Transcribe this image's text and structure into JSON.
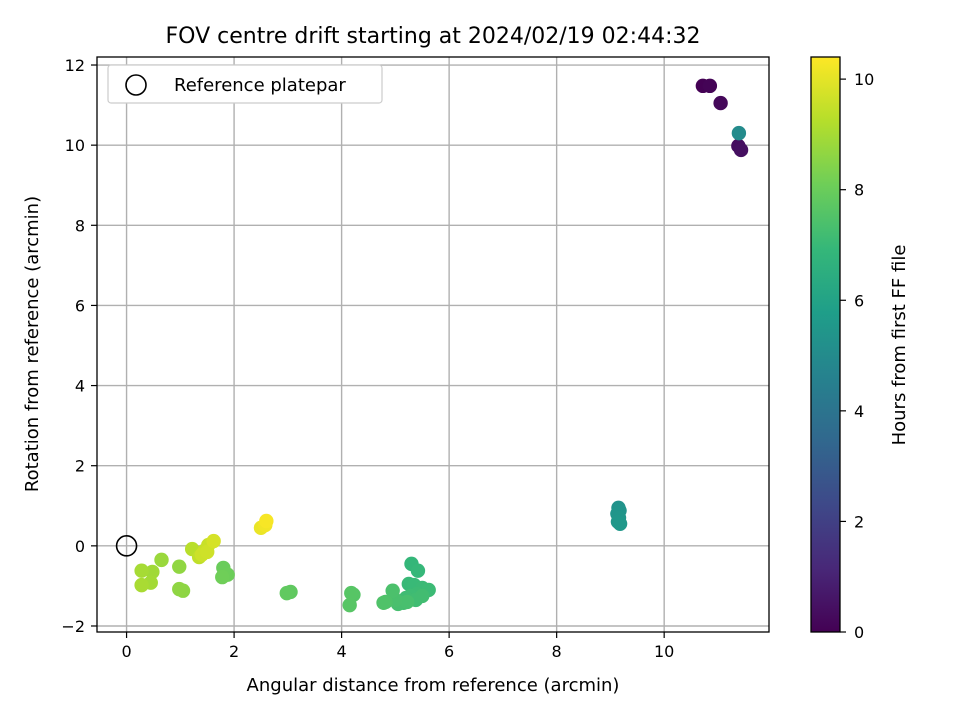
{
  "chart_data": {
    "type": "scatter",
    "title": "FOV centre drift starting at 2024/02/19 02:44:32",
    "xlabel": "Angular distance from reference (arcmin)",
    "ylabel": "Rotation from reference (arcmin)",
    "xlim": [
      -0.55,
      11.95
    ],
    "ylim": [
      -2.15,
      12.2
    ],
    "x_ticks": [
      0,
      2,
      4,
      6,
      8,
      10
    ],
    "y_ticks": [
      -2,
      0,
      2,
      4,
      6,
      8,
      10,
      12
    ],
    "grid": true,
    "legend": {
      "position": "top-left",
      "entries": [
        {
          "label": "Reference platepar",
          "marker": "open-circle"
        }
      ]
    },
    "reference_point": {
      "x": 0,
      "y": 0
    },
    "colorbar": {
      "label": "Hours from first FF file",
      "colormap": "viridis",
      "range": [
        0,
        10.4
      ],
      "ticks": [
        0,
        2,
        4,
        6,
        8,
        10
      ]
    },
    "points": [
      {
        "x": 10.72,
        "y": 11.48,
        "hours": 0.0
      },
      {
        "x": 10.85,
        "y": 11.48,
        "hours": 0.08
      },
      {
        "x": 11.05,
        "y": 11.05,
        "hours": 0.2
      },
      {
        "x": 11.38,
        "y": 9.98,
        "hours": 0.35
      },
      {
        "x": 11.43,
        "y": 9.88,
        "hours": 0.4
      },
      {
        "x": 11.39,
        "y": 10.3,
        "hours": 5.0
      },
      {
        "x": 9.15,
        "y": 0.95,
        "hours": 5.3
      },
      {
        "x": 9.17,
        "y": 0.88,
        "hours": 5.35
      },
      {
        "x": 9.13,
        "y": 0.8,
        "hours": 5.4
      },
      {
        "x": 9.16,
        "y": 0.7,
        "hours": 5.45
      },
      {
        "x": 9.14,
        "y": 0.6,
        "hours": 5.5
      },
      {
        "x": 9.18,
        "y": 0.55,
        "hours": 5.55
      },
      {
        "x": 5.3,
        "y": -0.45,
        "hours": 6.9
      },
      {
        "x": 5.42,
        "y": -0.62,
        "hours": 6.95
      },
      {
        "x": 5.25,
        "y": -0.95,
        "hours": 7.0
      },
      {
        "x": 5.35,
        "y": -0.98,
        "hours": 7.02
      },
      {
        "x": 5.5,
        "y": -1.05,
        "hours": 7.05
      },
      {
        "x": 5.62,
        "y": -1.1,
        "hours": 7.08
      },
      {
        "x": 5.4,
        "y": -1.2,
        "hours": 7.1
      },
      {
        "x": 5.28,
        "y": -1.25,
        "hours": 7.12
      },
      {
        "x": 5.2,
        "y": -1.3,
        "hours": 7.15
      },
      {
        "x": 5.38,
        "y": -1.35,
        "hours": 7.18
      },
      {
        "x": 5.5,
        "y": -1.25,
        "hours": 7.2
      },
      {
        "x": 5.15,
        "y": -1.42,
        "hours": 7.25
      },
      {
        "x": 5.05,
        "y": -1.45,
        "hours": 7.3
      },
      {
        "x": 5.22,
        "y": -1.4,
        "hours": 7.32
      },
      {
        "x": 5.0,
        "y": -1.35,
        "hours": 7.35
      },
      {
        "x": 4.95,
        "y": -1.12,
        "hours": 7.4
      },
      {
        "x": 4.82,
        "y": -1.4,
        "hours": 7.45
      },
      {
        "x": 4.78,
        "y": -1.42,
        "hours": 7.48
      },
      {
        "x": 4.22,
        "y": -1.22,
        "hours": 7.6
      },
      {
        "x": 4.18,
        "y": -1.18,
        "hours": 7.62
      },
      {
        "x": 4.15,
        "y": -1.48,
        "hours": 7.65
      },
      {
        "x": 3.05,
        "y": -1.15,
        "hours": 7.8
      },
      {
        "x": 2.98,
        "y": -1.18,
        "hours": 7.82
      },
      {
        "x": 1.8,
        "y": -0.55,
        "hours": 8.0
      },
      {
        "x": 1.88,
        "y": -0.72,
        "hours": 8.05
      },
      {
        "x": 1.78,
        "y": -0.78,
        "hours": 8.1
      },
      {
        "x": 1.05,
        "y": -1.12,
        "hours": 8.6
      },
      {
        "x": 0.98,
        "y": -1.08,
        "hours": 8.62
      },
      {
        "x": 0.98,
        "y": -0.52,
        "hours": 8.65
      },
      {
        "x": 0.65,
        "y": -0.35,
        "hours": 8.8
      },
      {
        "x": 0.48,
        "y": -0.65,
        "hours": 8.9
      },
      {
        "x": 0.45,
        "y": -0.92,
        "hours": 8.95
      },
      {
        "x": 0.28,
        "y": -0.62,
        "hours": 9.0
      },
      {
        "x": 0.28,
        "y": -0.98,
        "hours": 9.05
      },
      {
        "x": 1.22,
        "y": -0.08,
        "hours": 9.3
      },
      {
        "x": 1.35,
        "y": -0.28,
        "hours": 9.4
      },
      {
        "x": 1.45,
        "y": -0.12,
        "hours": 9.5
      },
      {
        "x": 1.52,
        "y": 0.02,
        "hours": 9.55
      },
      {
        "x": 1.4,
        "y": -0.22,
        "hours": 9.6
      },
      {
        "x": 1.5,
        "y": -0.15,
        "hours": 9.65
      },
      {
        "x": 1.62,
        "y": 0.12,
        "hours": 9.75
      },
      {
        "x": 2.5,
        "y": 0.45,
        "hours": 10.1
      },
      {
        "x": 2.58,
        "y": 0.52,
        "hours": 10.2
      },
      {
        "x": 2.6,
        "y": 0.62,
        "hours": 10.3
      }
    ]
  }
}
